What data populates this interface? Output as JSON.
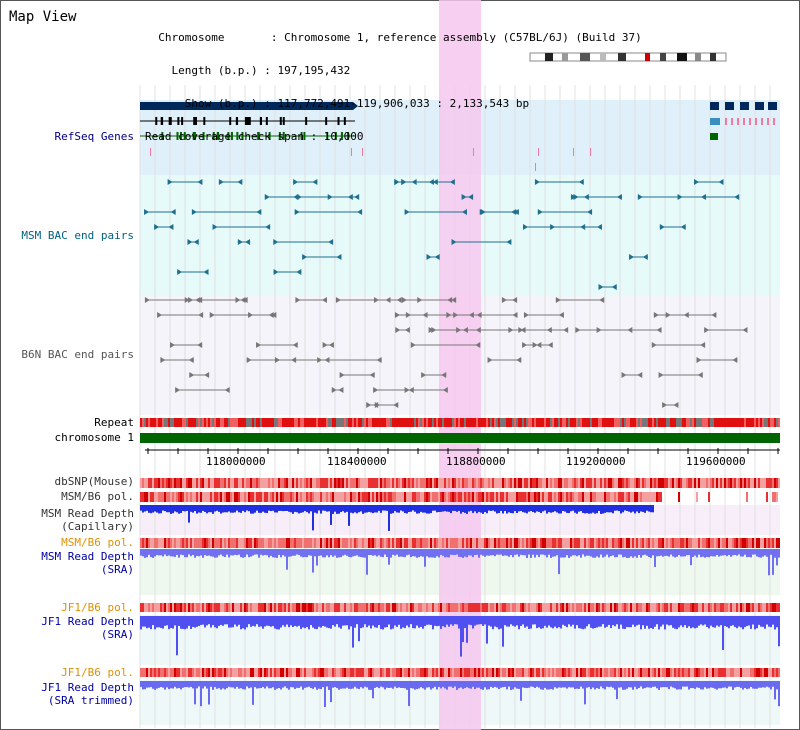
{
  "header": {
    "title": "Map View",
    "info_lines": [
      "  Chromosome       : Chromosome 1, reference assembly (C57BL/6J) (Build 37)",
      "    Length (b.p.) : 197,195,432",
      "      Show (b.p.) : 117,772,491-119,906,033 : 2,133,543 bp",
      "Read coverage check span : 10,000"
    ]
  },
  "tracks": {
    "refseq": "RefSeq Genes",
    "msm_bac": "MSM BAC end pairs",
    "b6n_bac": "B6N BAC end pairs",
    "repeat": "Repeat",
    "chromosome": "chromosome 1",
    "dbsnp": "dbSNP(Mouse)",
    "msm_b6_pol": "MSM/B6 pol.",
    "msm_read_depth_cap_1": "MSM Read Depth",
    "msm_read_depth_cap_2": "(Capillary)",
    "msm_b6_pol_2": "MSM/B6 pol.",
    "msm_read_depth_sra_1": "MSM Read Depth",
    "msm_read_depth_sra_2": "(SRA)",
    "jf1_b6_pol": "JF1/B6 pol.",
    "jf1_read_depth_sra_1": "JF1 Read Depth",
    "jf1_read_depth_sra_2": "(SRA)",
    "jf1_b6_pol_2": "JF1/B6 pol.",
    "jf1_read_depth_trim_1": "JF1 Read Depth",
    "jf1_read_depth_trim_2": "(SRA trimmed)"
  },
  "axis": {
    "ticks": [
      "118000000",
      "118400000",
      "118800000",
      "119200000",
      "119600000"
    ]
  },
  "colors": {
    "refseq_label": "#000080",
    "msm_bac_label": "#006080",
    "b6n_label": "#555555",
    "orange_label": "#e09000",
    "blue_label": "#0000a0",
    "highlight": "#f6c8ee",
    "chrom_bar": "#006400"
  }
}
